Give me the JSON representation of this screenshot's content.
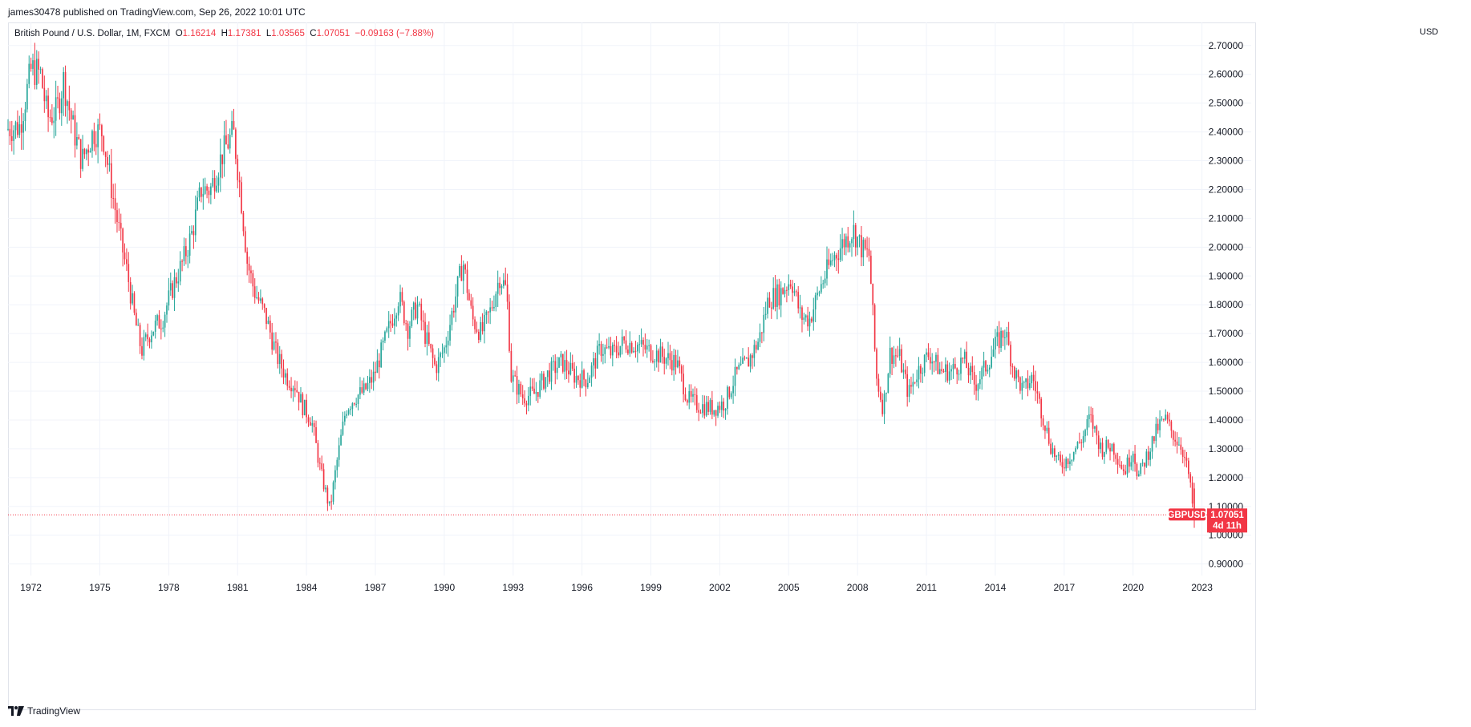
{
  "header": {
    "published": "james30478 published on TradingView.com, Sep 26, 2022 10:01 UTC"
  },
  "legend": {
    "symbol": "British Pound / U.S. Dollar, 1M, FXCM",
    "open_label": "O",
    "open": "1.16214",
    "high_label": "H",
    "high": "1.17381",
    "low_label": "L",
    "low": "1.03565",
    "close_label": "C",
    "close": "1.07051",
    "change": "−0.09163 (−7.88%)"
  },
  "axis_currency": "USD",
  "price_badge": {
    "ticker": "GBPUSD",
    "last": "1.07051",
    "countdown": "4d 11h"
  },
  "footer": {
    "brand": "TradingView"
  },
  "colors": {
    "up": "#26a69a",
    "down": "#f23645",
    "grid": "#f0f3fa",
    "text": "#131722",
    "lastline": "#f23645"
  },
  "chart_data": {
    "type": "candlestick",
    "title": "British Pound / U.S. Dollar, 1M, FXCM",
    "xlabel": "",
    "ylabel": "USD",
    "x_ticks": [
      "1972",
      "1975",
      "1978",
      "1981",
      "1984",
      "1987",
      "1990",
      "1993",
      "1996",
      "1999",
      "2002",
      "2005",
      "2008",
      "2011",
      "2014",
      "2017",
      "2020",
      "2023"
    ],
    "y_ticks": [
      "0.90000",
      "1.00000",
      "1.10000",
      "1.20000",
      "1.30000",
      "1.40000",
      "1.50000",
      "1.60000",
      "1.70000",
      "1.80000",
      "1.90000",
      "2.00000",
      "2.10000",
      "2.20000",
      "2.30000",
      "2.40000",
      "2.50000",
      "2.60000",
      "2.70000"
    ],
    "ylim": [
      0.86,
      2.78
    ],
    "xlim": [
      1971.0,
      2023.4
    ],
    "last_price": 1.07051,
    "grid": true,
    "series_path": [
      [
        1971.0,
        2.41
      ],
      [
        1971.6,
        2.42
      ],
      [
        1972.1,
        2.62
      ],
      [
        1972.5,
        2.6
      ],
      [
        1972.8,
        2.45
      ],
      [
        1973.2,
        2.47
      ],
      [
        1973.5,
        2.58
      ],
      [
        1973.9,
        2.42
      ],
      [
        1974.3,
        2.3
      ],
      [
        1974.8,
        2.4
      ],
      [
        1975.2,
        2.4
      ],
      [
        1975.6,
        2.2
      ],
      [
        1976.0,
        2.02
      ],
      [
        1976.3,
        1.9
      ],
      [
        1976.6,
        1.75
      ],
      [
        1976.9,
        1.64
      ],
      [
        1977.3,
        1.71
      ],
      [
        1977.8,
        1.75
      ],
      [
        1978.3,
        1.87
      ],
      [
        1978.7,
        1.95
      ],
      [
        1979.1,
        2.05
      ],
      [
        1979.5,
        2.2
      ],
      [
        1979.9,
        2.2
      ],
      [
        1980.4,
        2.32
      ],
      [
        1980.9,
        2.4
      ],
      [
        1981.2,
        2.2
      ],
      [
        1981.5,
        1.95
      ],
      [
        1981.8,
        1.85
      ],
      [
        1982.3,
        1.76
      ],
      [
        1982.8,
        1.62
      ],
      [
        1983.2,
        1.55
      ],
      [
        1983.6,
        1.52
      ],
      [
        1983.9,
        1.45
      ],
      [
        1984.3,
        1.4
      ],
      [
        1984.7,
        1.22
      ],
      [
        1985.1,
        1.09
      ],
      [
        1985.4,
        1.25
      ],
      [
        1985.8,
        1.44
      ],
      [
        1986.2,
        1.48
      ],
      [
        1986.6,
        1.5
      ],
      [
        1987.0,
        1.55
      ],
      [
        1987.4,
        1.65
      ],
      [
        1987.8,
        1.75
      ],
      [
        1988.1,
        1.83
      ],
      [
        1988.5,
        1.72
      ],
      [
        1988.9,
        1.8
      ],
      [
        1989.3,
        1.68
      ],
      [
        1989.7,
        1.58
      ],
      [
        1990.1,
        1.65
      ],
      [
        1990.5,
        1.8
      ],
      [
        1990.9,
        1.95
      ],
      [
        1991.3,
        1.75
      ],
      [
        1991.7,
        1.7
      ],
      [
        1992.1,
        1.78
      ],
      [
        1992.5,
        1.9
      ],
      [
        1992.8,
        1.85
      ],
      [
        1993.0,
        1.55
      ],
      [
        1993.5,
        1.48
      ],
      [
        1994.0,
        1.49
      ],
      [
        1994.6,
        1.56
      ],
      [
        1995.2,
        1.6
      ],
      [
        1995.8,
        1.55
      ],
      [
        1996.3,
        1.54
      ],
      [
        1996.9,
        1.65
      ],
      [
        1997.4,
        1.63
      ],
      [
        1997.9,
        1.67
      ],
      [
        1998.5,
        1.66
      ],
      [
        1999.0,
        1.64
      ],
      [
        1999.6,
        1.62
      ],
      [
        2000.2,
        1.6
      ],
      [
        2000.7,
        1.47
      ],
      [
        2001.2,
        1.45
      ],
      [
        2001.8,
        1.44
      ],
      [
        2002.3,
        1.46
      ],
      [
        2002.8,
        1.56
      ],
      [
        2003.3,
        1.6
      ],
      [
        2003.8,
        1.68
      ],
      [
        2004.2,
        1.82
      ],
      [
        2004.7,
        1.84
      ],
      [
        2005.2,
        1.89
      ],
      [
        2005.6,
        1.76
      ],
      [
        2006.0,
        1.75
      ],
      [
        2006.5,
        1.87
      ],
      [
        2007.0,
        1.96
      ],
      [
        2007.5,
        2.02
      ],
      [
        2007.9,
        2.06
      ],
      [
        2008.3,
        1.99
      ],
      [
        2008.6,
        1.97
      ],
      [
        2008.9,
        1.55
      ],
      [
        2009.2,
        1.44
      ],
      [
        2009.5,
        1.63
      ],
      [
        2009.9,
        1.62
      ],
      [
        2010.3,
        1.49
      ],
      [
        2010.7,
        1.57
      ],
      [
        2011.2,
        1.63
      ],
      [
        2011.7,
        1.57
      ],
      [
        2012.2,
        1.57
      ],
      [
        2012.7,
        1.61
      ],
      [
        2013.2,
        1.52
      ],
      [
        2013.7,
        1.59
      ],
      [
        2014.1,
        1.66
      ],
      [
        2014.5,
        1.71
      ],
      [
        2014.9,
        1.57
      ],
      [
        2015.3,
        1.5
      ],
      [
        2015.7,
        1.55
      ],
      [
        2016.1,
        1.43
      ],
      [
        2016.5,
        1.31
      ],
      [
        2016.9,
        1.24
      ],
      [
        2017.4,
        1.28
      ],
      [
        2017.9,
        1.34
      ],
      [
        2018.2,
        1.41
      ],
      [
        2018.7,
        1.3
      ],
      [
        2019.2,
        1.31
      ],
      [
        2019.7,
        1.22
      ],
      [
        2020.1,
        1.3
      ],
      [
        2020.3,
        1.2
      ],
      [
        2020.8,
        1.3
      ],
      [
        2021.2,
        1.38
      ],
      [
        2021.5,
        1.4
      ],
      [
        2021.9,
        1.34
      ],
      [
        2022.2,
        1.31
      ],
      [
        2022.5,
        1.21
      ],
      [
        2022.73,
        1.07
      ]
    ]
  }
}
